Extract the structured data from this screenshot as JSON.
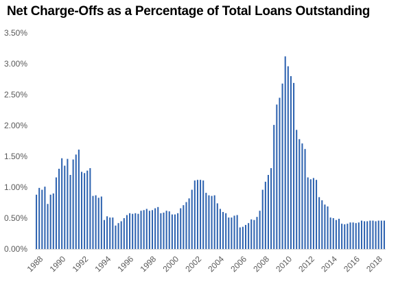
{
  "chart_data": {
    "type": "bar",
    "title": "Net Charge-Offs as a Percentage of Total Loans Outstanding",
    "xlabel": "",
    "ylabel": "",
    "ylim": [
      0,
      3.5
    ],
    "y_ticks": [
      "0.00%",
      "0.50%",
      "1.00%",
      "1.50%",
      "2.00%",
      "2.50%",
      "3.00%",
      "3.50%"
    ],
    "x_ticks": [
      "1988",
      "1990",
      "1992",
      "1994",
      "1996",
      "1998",
      "2000",
      "2002",
      "2004",
      "2006",
      "2008",
      "2010",
      "2012",
      "2014",
      "2016",
      "2018"
    ],
    "grid": false,
    "legend": "none",
    "bar_color": "#2e63b0",
    "axis_color": "#d9d9d9",
    "start_quarter": "1988 Q1",
    "series": [
      {
        "values": [
          0.88,
          0.99,
          0.96,
          1.01,
          0.73,
          0.88,
          0.9,
          1.16,
          1.3,
          1.47,
          1.35,
          1.46,
          1.2,
          1.45,
          1.53,
          1.61,
          1.25,
          1.23,
          1.27,
          1.31,
          0.86,
          0.87,
          0.83,
          0.85,
          0.47,
          0.53,
          0.51,
          0.51,
          0.38,
          0.42,
          0.45,
          0.5,
          0.55,
          0.58,
          0.57,
          0.58,
          0.57,
          0.62,
          0.63,
          0.65,
          0.62,
          0.63,
          0.66,
          0.68,
          0.58,
          0.59,
          0.62,
          0.61,
          0.56,
          0.56,
          0.58,
          0.66,
          0.71,
          0.76,
          0.82,
          0.96,
          1.11,
          1.12,
          1.12,
          1.11,
          0.91,
          0.87,
          0.86,
          0.87,
          0.74,
          0.65,
          0.6,
          0.58,
          0.51,
          0.51,
          0.54,
          0.55,
          0.35,
          0.36,
          0.39,
          0.42,
          0.48,
          0.47,
          0.52,
          0.62,
          0.96,
          1.09,
          1.2,
          1.31,
          2.01,
          2.34,
          2.45,
          2.68,
          3.12,
          2.96,
          2.8,
          2.69,
          1.93,
          1.78,
          1.71,
          1.62,
          1.16,
          1.13,
          1.15,
          1.12,
          0.84,
          0.79,
          0.72,
          0.69,
          0.51,
          0.5,
          0.47,
          0.49,
          0.41,
          0.4,
          0.41,
          0.43,
          0.43,
          0.42,
          0.43,
          0.46,
          0.45,
          0.45,
          0.46,
          0.46,
          0.45,
          0.46,
          0.46,
          0.46
        ]
      }
    ]
  }
}
